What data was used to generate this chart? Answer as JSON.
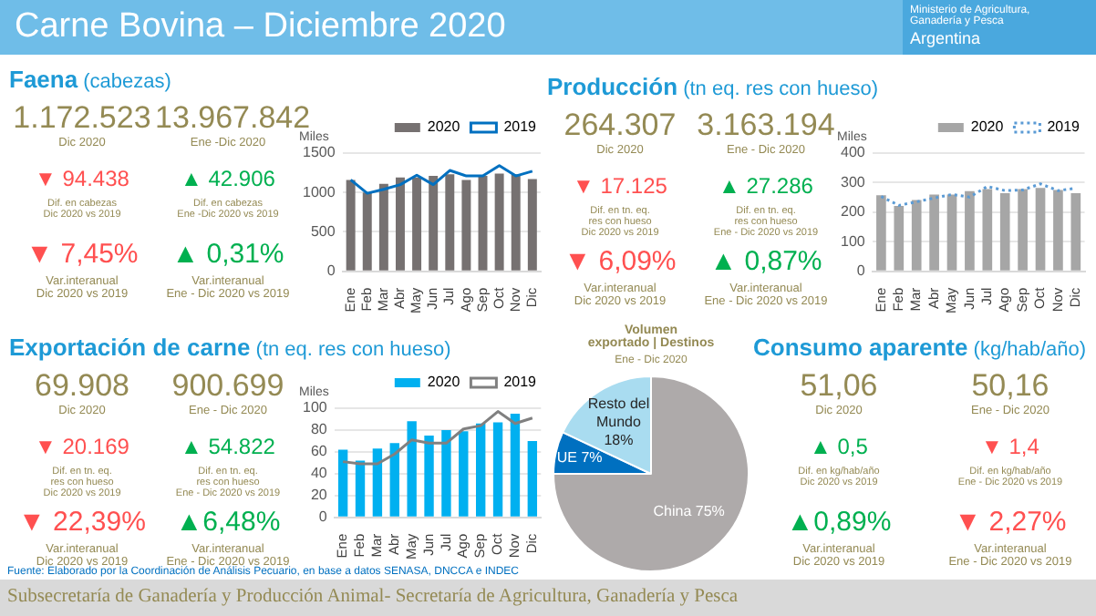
{
  "chart_data": [
    {
      "type": "other",
      "title": "Carne Bovina – Diciembre 2020",
      "annotations": [
        "Ministerio de Agricultura,\nGanadería y Pesca",
        "Argentina",
        "Fuente: Elaborado por la Coordinación de Análisis Pecuario, en base a datos SENASA, DNCCA e INDEC",
        "Subsecretaría de Ganadería y Producción Animal- Secretaría de Agricultura, Ganadería y Pesca"
      ]
    },
    {
      "type": "other",
      "title": "Faena",
      "subtitle": "(cabezas)",
      "annotations": [
        "1.172.523",
        "Dic 2020",
        "13.967.842",
        "Ene -Dic 2020",
        "▼ 94.438",
        "Dif. en cabezas\nDic 2020 vs 2019",
        "▲ 42.906",
        "Dif. en cabezas\nEne -Dic 2020 vs 2019",
        "▼ 7,45%",
        "Var.interanual\nDic 2020 vs 2019",
        "▲ 0,31%",
        "Var.interanual\nEne - Dic 2020 vs 2019"
      ],
      "colors": [
        "#948a54",
        "#948a54",
        "#948a54",
        "#948a54",
        "#ff5050",
        "#948a54",
        "#00b050",
        "#948a54",
        "#ff5050",
        "#948a54",
        "#00b050",
        "#948a54"
      ]
    },
    {
      "type": "bar",
      "ylabel": "Miles",
      "categories": [
        "Ene",
        "Feb",
        "Mar",
        "Abr",
        "May",
        "Jun",
        "Jul",
        "Ago",
        "Sep",
        "Oct",
        "Nov",
        "Dic"
      ],
      "ylim": [
        0,
        1500
      ],
      "yticks": [
        0,
        500,
        1000,
        1500
      ],
      "grid": "y",
      "legend": "top right",
      "marker": "none",
      "series": [
        {
          "name": "2020",
          "type": "bar",
          "color": "#767171",
          "values": [
            1160,
            1000,
            1110,
            1190,
            1190,
            1210,
            1230,
            1160,
            1210,
            1240,
            1230,
            1170
          ]
        },
        {
          "name": "2019",
          "type": "line",
          "color": "#0070c0",
          "values": [
            1160,
            990,
            1040,
            1100,
            1220,
            1100,
            1280,
            1210,
            1210,
            1340,
            1210,
            1270
          ]
        }
      ]
    },
    {
      "type": "other",
      "title": "Producción",
      "subtitle": "(tn eq. res con hueso)",
      "annotations": [
        "264.307",
        "Dic 2020",
        "3.163.194",
        "Ene - Dic 2020",
        "▼ 17.125",
        "Dif. en tn. eq.\nres con hueso\nDic 2020 vs 2019",
        "▲ 27.286",
        "Dif. en tn. eq.\nres con hueso\nEne - Dic 2020 vs 2019",
        "▼ 6,09%",
        "Var.interanual\nDic 2020 vs 2019",
        "▲ 0,87%",
        "Var.interanual\nEne - Dic 2020 vs 2019"
      ],
      "colors": [
        "#948a54",
        "#948a54",
        "#948a54",
        "#948a54",
        "#ff5050",
        "#948a54",
        "#00b050",
        "#948a54",
        "#ff5050",
        "#948a54",
        "#00b050",
        "#948a54"
      ]
    },
    {
      "type": "bar",
      "ylabel": "Miles",
      "categories": [
        "Ene",
        "Feb",
        "Mar",
        "Abr",
        "May",
        "Jun",
        "Jul",
        "Ago",
        "Sep",
        "Oct",
        "Nov",
        "Dic"
      ],
      "ylim": [
        0,
        400
      ],
      "yticks": [
        0,
        100,
        200,
        300,
        400
      ],
      "grid": "y",
      "legend": "top right",
      "marker": "none",
      "series": [
        {
          "name": "2020",
          "type": "bar",
          "color": "#a6a6a6",
          "values": [
            257,
            221,
            241,
            260,
            260,
            271,
            278,
            264,
            278,
            282,
            275,
            264
          ]
        },
        {
          "name": "2019",
          "type": "line",
          "line_style": "dotted",
          "color": "#5b9bd5",
          "values": [
            253,
            223,
            235,
            248,
            260,
            251,
            287,
            273,
            275,
            296,
            273,
            281
          ]
        }
      ]
    },
    {
      "type": "other",
      "title": "Exportación de carne",
      "subtitle": "(tn eq. res con hueso)",
      "annotations": [
        "69.908",
        "Dic 2020",
        "900.699",
        "Ene - Dic 2020",
        "▼ 20.169",
        "Dif. en tn. eq.\nres con hueso\nDic 2020 vs 2019",
        "▲ 54.822",
        "Dif. en tn. eq.\nres con hueso\nEne - Dic 2020 vs 2019",
        "▼ 22,39%",
        "Var.interanual\nDic 2020 vs 2019",
        "▲6,48%",
        "Var.interanual\nEne - Dic 2020 vs 2019"
      ],
      "colors": [
        "#948a54",
        "#948a54",
        "#948a54",
        "#948a54",
        "#ff5050",
        "#948a54",
        "#00b050",
        "#948a54",
        "#ff5050",
        "#948a54",
        "#00b050",
        "#948a54"
      ]
    },
    {
      "type": "bar",
      "ylabel": "Miles",
      "categories": [
        "Ene",
        "Feb",
        "Mar",
        "Abr",
        "May",
        "Jun",
        "Jul",
        "Ago",
        "Sep",
        "Oct",
        "Nov",
        "Dic"
      ],
      "ylim": [
        0,
        100
      ],
      "yticks": [
        0,
        20,
        40,
        60,
        80,
        100
      ],
      "grid": "y",
      "legend": "top right",
      "marker": "none",
      "series": [
        {
          "name": "2020",
          "type": "bar",
          "color": "#00b0f0",
          "values": [
            62,
            52,
            63,
            68,
            88,
            75,
            80,
            79,
            86,
            87,
            95,
            70
          ]
        },
        {
          "name": "2019",
          "type": "line",
          "color": "#808080",
          "values": [
            51,
            49,
            49,
            58,
            71,
            68,
            68,
            81,
            84,
            97,
            86,
            91
          ]
        }
      ]
    },
    {
      "type": "pie",
      "title": "Volumen\nexportado | Destinos",
      "subtitle": "Ene - Dic 2020",
      "categories": [
        "China",
        "UE",
        "Resto del Mundo"
      ],
      "values": [
        75,
        7,
        18
      ],
      "colors": [
        "#aeaaaa",
        "#0070c0",
        "#a9dcf0"
      ],
      "value_labels": [
        "75%",
        "7%",
        "18%"
      ]
    },
    {
      "type": "other",
      "title": "Consumo aparente",
      "subtitle": "(kg/hab/año)",
      "annotations": [
        "51,06",
        "Dic 2020",
        "50,16",
        "Ene - Dic 2020",
        "▲ 0,5",
        "Dif. en kg/hab/año\nDic 2020 vs 2019",
        "▼ 1,4",
        "Dif. en kg/hab/año\nEne - Dic 2020 vs 2019",
        "▲0,89%",
        "Var.interanual\nDic 2020 vs 2019",
        "▼ 2,27%",
        "Var.interanual\nEne - Dic 2020 vs 2019"
      ],
      "colors": [
        "#948a54",
        "#948a54",
        "#948a54",
        "#948a54",
        "#00b050",
        "#948a54",
        "#ff5050",
        "#948a54",
        "#00b050",
        "#948a54",
        "#ff5050",
        "#948a54"
      ]
    }
  ]
}
